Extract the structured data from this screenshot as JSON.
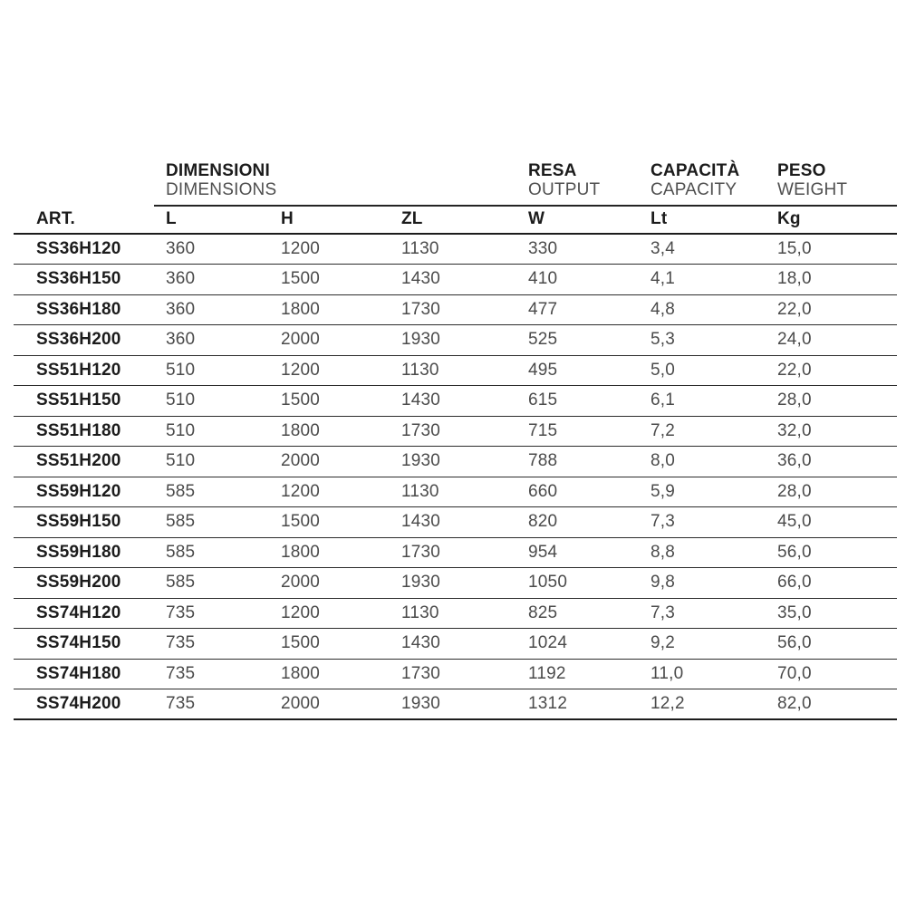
{
  "table": {
    "group_headers": [
      {
        "title": "DIMENSIONI",
        "subtitle": "DIMENSIONS"
      },
      {
        "title": "RESA",
        "subtitle": "OUTPUT"
      },
      {
        "title": "CAPACITÀ",
        "subtitle": "CAPACITY"
      },
      {
        "title": "PESO",
        "subtitle": "WEIGHT"
      }
    ],
    "columns": [
      "ART.",
      "L",
      "H",
      "ZL",
      "W",
      "Lt",
      "Kg"
    ],
    "rows": [
      [
        "SS36H120",
        "360",
        "1200",
        "1130",
        "330",
        "3,4",
        "15,0"
      ],
      [
        "SS36H150",
        "360",
        "1500",
        "1430",
        "410",
        "4,1",
        "18,0"
      ],
      [
        "SS36H180",
        "360",
        "1800",
        "1730",
        "477",
        "4,8",
        "22,0"
      ],
      [
        "SS36H200",
        "360",
        "2000",
        "1930",
        "525",
        "5,3",
        "24,0"
      ],
      [
        "SS51H120",
        "510",
        "1200",
        "1130",
        "495",
        "5,0",
        "22,0"
      ],
      [
        "SS51H150",
        "510",
        "1500",
        "1430",
        "615",
        "6,1",
        "28,0"
      ],
      [
        "SS51H180",
        "510",
        "1800",
        "1730",
        "715",
        "7,2",
        "32,0"
      ],
      [
        "SS51H200",
        "510",
        "2000",
        "1930",
        "788",
        "8,0",
        "36,0"
      ],
      [
        "SS59H120",
        "585",
        "1200",
        "1130",
        "660",
        "5,9",
        "28,0"
      ],
      [
        "SS59H150",
        "585",
        "1500",
        "1430",
        "820",
        "7,3",
        "45,0"
      ],
      [
        "SS59H180",
        "585",
        "1800",
        "1730",
        "954",
        "8,8",
        "56,0"
      ],
      [
        "SS59H200",
        "585",
        "2000",
        "1930",
        "1050",
        "9,8",
        "66,0"
      ],
      [
        "SS74H120",
        "735",
        "1200",
        "1130",
        "825",
        "7,3",
        "35,0"
      ],
      [
        "SS74H150",
        "735",
        "1500",
        "1430",
        "1024",
        "9,2",
        "56,0"
      ],
      [
        "SS74H180",
        "735",
        "1800",
        "1730",
        "1192",
        "11,0",
        "70,0"
      ],
      [
        "SS74H200",
        "735",
        "2000",
        "1930",
        "1312",
        "12,2",
        "82,0"
      ]
    ],
    "colors": {
      "heading": "#1c1c1c",
      "subtitle": "#4f4f4f",
      "value": "#4b4b4b",
      "thin_rule": "#2c2c2c",
      "heavy_rule": "#1c1c1c"
    }
  }
}
